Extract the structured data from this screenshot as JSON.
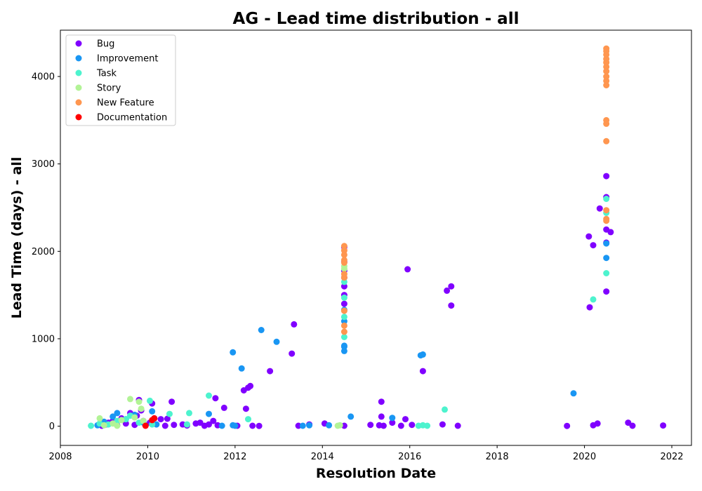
{
  "chart_data": {
    "type": "scatter",
    "title": "AG - Lead time distribution - all",
    "xlabel": "Resolution Date",
    "ylabel": "Lead Time (days) - all",
    "xlim": [
      2008.0,
      2022.45
    ],
    "ylim": [
      -220,
      4530
    ],
    "x_ticks": [
      2008,
      2010,
      2012,
      2014,
      2016,
      2018,
      2020,
      2022
    ],
    "x_tick_labels": [
      "2008",
      "2010",
      "2012",
      "2014",
      "2016",
      "2018",
      "2020",
      "2022"
    ],
    "y_ticks": [
      0,
      1000,
      2000,
      3000,
      4000
    ],
    "y_tick_labels": [
      "0",
      "1000",
      "2000",
      "3000",
      "4000"
    ],
    "grid": false,
    "legend_position": "upper-left",
    "series": [
      {
        "name": "Bug",
        "color": "#8000ff",
        "points": [
          [
            2008.95,
            5
          ],
          [
            2009.05,
            20
          ],
          [
            2009.1,
            40
          ],
          [
            2009.2,
            60
          ],
          [
            2009.3,
            10
          ],
          [
            2009.4,
            90
          ],
          [
            2009.5,
            30
          ],
          [
            2009.6,
            150
          ],
          [
            2009.7,
            15
          ],
          [
            2009.75,
            120
          ],
          [
            2009.8,
            300
          ],
          [
            2009.85,
            180
          ],
          [
            2009.9,
            60
          ],
          [
            2009.95,
            8
          ],
          [
            2010.05,
            40
          ],
          [
            2010.1,
            260
          ],
          [
            2010.15,
            90
          ],
          [
            2010.3,
            80
          ],
          [
            2010.4,
            5
          ],
          [
            2010.45,
            85
          ],
          [
            2010.55,
            280
          ],
          [
            2010.6,
            15
          ],
          [
            2010.8,
            20
          ],
          [
            2010.9,
            8
          ],
          [
            2011.1,
            30
          ],
          [
            2011.2,
            40
          ],
          [
            2011.3,
            5
          ],
          [
            2011.4,
            20
          ],
          [
            2011.5,
            60
          ],
          [
            2011.55,
            320
          ],
          [
            2011.6,
            10
          ],
          [
            2011.75,
            210
          ],
          [
            2012.05,
            5
          ],
          [
            2012.2,
            410
          ],
          [
            2012.25,
            200
          ],
          [
            2012.3,
            440
          ],
          [
            2012.35,
            460
          ],
          [
            2012.4,
            5
          ],
          [
            2012.55,
            3
          ],
          [
            2012.8,
            630
          ],
          [
            2013.3,
            830
          ],
          [
            2013.35,
            1165
          ],
          [
            2013.45,
            5
          ],
          [
            2013.7,
            20
          ],
          [
            2014.05,
            30
          ],
          [
            2014.5,
            5
          ],
          [
            2014.5,
            1400
          ],
          [
            2014.5,
            1500
          ],
          [
            2014.5,
            1600
          ],
          [
            2014.5,
            1700
          ],
          [
            2014.5,
            1780
          ],
          [
            2014.5,
            1880
          ],
          [
            2014.5,
            2050
          ],
          [
            2015.1,
            15
          ],
          [
            2015.3,
            10
          ],
          [
            2015.35,
            280
          ],
          [
            2015.35,
            110
          ],
          [
            2015.4,
            5
          ],
          [
            2015.6,
            40
          ],
          [
            2015.8,
            5
          ],
          [
            2015.9,
            80
          ],
          [
            2015.95,
            1795
          ],
          [
            2016.05,
            15
          ],
          [
            2016.3,
            630
          ],
          [
            2016.75,
            20
          ],
          [
            2016.85,
            1550
          ],
          [
            2016.95,
            1600
          ],
          [
            2016.95,
            1380
          ],
          [
            2017.1,
            5
          ],
          [
            2019.6,
            3
          ],
          [
            2020.1,
            2170
          ],
          [
            2020.12,
            1360
          ],
          [
            2020.2,
            2070
          ],
          [
            2020.2,
            10
          ],
          [
            2020.3,
            30
          ],
          [
            2020.35,
            2490
          ],
          [
            2020.5,
            2860
          ],
          [
            2020.5,
            2620
          ],
          [
            2020.5,
            2250
          ],
          [
            2020.5,
            2100
          ],
          [
            2020.5,
            1540
          ],
          [
            2020.6,
            2220
          ],
          [
            2021.0,
            40
          ],
          [
            2021.1,
            5
          ],
          [
            2021.8,
            8
          ]
        ]
      },
      {
        "name": "Improvement",
        "color": "#1996f3",
        "points": [
          [
            2008.85,
            10
          ],
          [
            2009.0,
            50
          ],
          [
            2009.2,
            110
          ],
          [
            2009.3,
            150
          ],
          [
            2009.5,
            80
          ],
          [
            2009.7,
            130
          ],
          [
            2009.9,
            40
          ],
          [
            2010.1,
            170
          ],
          [
            2010.2,
            20
          ],
          [
            2011.4,
            140
          ],
          [
            2011.7,
            5
          ],
          [
            2011.95,
            845
          ],
          [
            2011.95,
            10
          ],
          [
            2012.0,
            5
          ],
          [
            2012.15,
            660
          ],
          [
            2012.6,
            1100
          ],
          [
            2012.95,
            965
          ],
          [
            2013.55,
            5
          ],
          [
            2013.7,
            10
          ],
          [
            2014.15,
            10
          ],
          [
            2014.5,
            860
          ],
          [
            2014.5,
            910
          ],
          [
            2014.5,
            920
          ],
          [
            2014.5,
            1200
          ],
          [
            2014.5,
            1330
          ],
          [
            2014.65,
            110
          ],
          [
            2015.6,
            95
          ],
          [
            2016.25,
            810
          ],
          [
            2016.3,
            820
          ],
          [
            2019.75,
            375
          ],
          [
            2020.5,
            2090
          ],
          [
            2020.5,
            1925
          ]
        ]
      },
      {
        "name": "Task",
        "color": "#4df3ce",
        "points": [
          [
            2008.7,
            5
          ],
          [
            2008.9,
            30
          ],
          [
            2009.1,
            20
          ],
          [
            2009.3,
            60
          ],
          [
            2009.5,
            80
          ],
          [
            2009.6,
            120
          ],
          [
            2009.8,
            40
          ],
          [
            2010.05,
            290
          ],
          [
            2010.1,
            20
          ],
          [
            2010.5,
            140
          ],
          [
            2010.9,
            20
          ],
          [
            2010.95,
            150
          ],
          [
            2011.4,
            350
          ],
          [
            2012.3,
            80
          ],
          [
            2014.5,
            1020
          ],
          [
            2014.5,
            1250
          ],
          [
            2014.5,
            1470
          ],
          [
            2014.5,
            1650
          ],
          [
            2016.2,
            5
          ],
          [
            2016.3,
            10
          ],
          [
            2016.4,
            5
          ],
          [
            2016.8,
            190
          ],
          [
            2020.2,
            1450
          ],
          [
            2020.5,
            1750
          ],
          [
            2020.5,
            2440
          ],
          [
            2020.5,
            2600
          ]
        ]
      },
      {
        "name": "Story",
        "color": "#b2f396",
        "points": [
          [
            2008.9,
            90
          ],
          [
            2009.0,
            10
          ],
          [
            2009.2,
            30
          ],
          [
            2009.3,
            5
          ],
          [
            2009.4,
            70
          ],
          [
            2009.6,
            310
          ],
          [
            2009.7,
            100
          ],
          [
            2009.8,
            280
          ],
          [
            2009.85,
            200
          ],
          [
            2009.9,
            60
          ],
          [
            2014.35,
            5
          ],
          [
            2014.4,
            10
          ],
          [
            2014.5,
            1800
          ],
          [
            2014.5,
            1830
          ]
        ]
      },
      {
        "name": "New Feature",
        "color": "#ff964f",
        "points": [
          [
            2014.5,
            1080
          ],
          [
            2014.5,
            1150
          ],
          [
            2014.5,
            1320
          ],
          [
            2014.5,
            1700
          ],
          [
            2014.5,
            1740
          ],
          [
            2014.5,
            1870
          ],
          [
            2014.5,
            1900
          ],
          [
            2014.5,
            1960
          ],
          [
            2014.5,
            2010
          ],
          [
            2014.5,
            2060
          ],
          [
            2020.5,
            2350
          ],
          [
            2020.5,
            2370
          ],
          [
            2020.5,
            2470
          ],
          [
            2020.5,
            3260
          ],
          [
            2020.5,
            3460
          ],
          [
            2020.5,
            3500
          ],
          [
            2020.5,
            3900
          ],
          [
            2020.5,
            3950
          ],
          [
            2020.5,
            4000
          ],
          [
            2020.5,
            4060
          ],
          [
            2020.5,
            4110
          ],
          [
            2020.5,
            4160
          ],
          [
            2020.5,
            4200
          ],
          [
            2020.5,
            4250
          ],
          [
            2020.5,
            4290
          ],
          [
            2020.5,
            4320
          ]
        ]
      },
      {
        "name": "Documentation",
        "color": "#ff0000",
        "points": [
          [
            2009.95,
            5
          ],
          [
            2010.1,
            70
          ],
          [
            2010.15,
            90
          ]
        ]
      }
    ]
  }
}
